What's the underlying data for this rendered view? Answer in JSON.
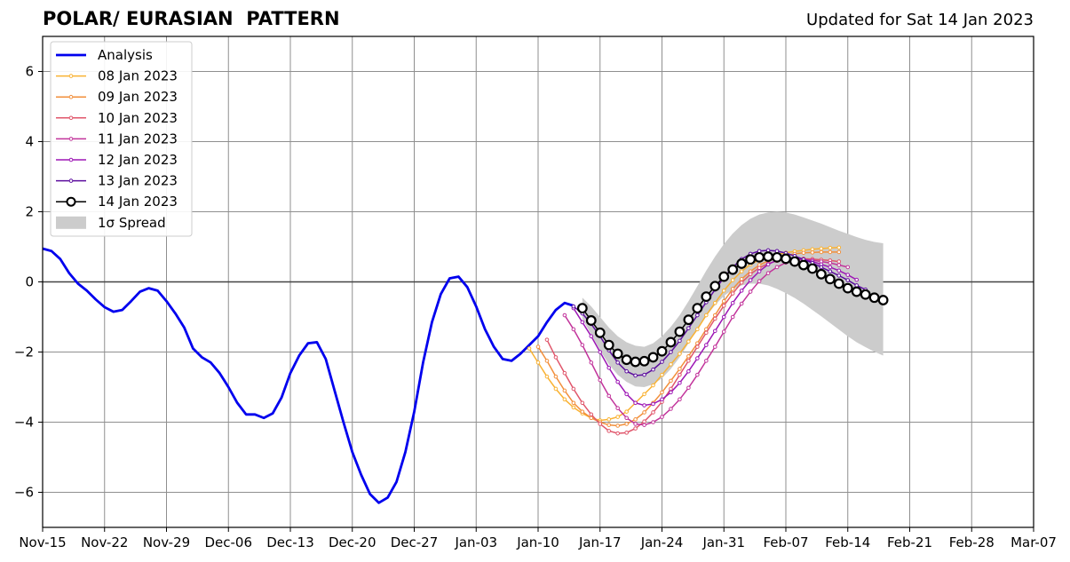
{
  "header": {
    "title": "POLAR/ EURASIAN  PATTERN",
    "updated": "Updated for Sat 14 Jan 2023"
  },
  "chart_data": {
    "type": "line",
    "title": "POLAR/ EURASIAN  PATTERN",
    "xlabel": "",
    "ylabel": "",
    "x_axis": {
      "start": "2022-11-15",
      "end": "2023-03-07",
      "ticks": [
        {
          "date": "2022-11-15",
          "label": "Nov-15"
        },
        {
          "date": "2022-11-22",
          "label": "Nov-22"
        },
        {
          "date": "2022-11-29",
          "label": "Nov-29"
        },
        {
          "date": "2022-12-06",
          "label": "Dec-06"
        },
        {
          "date": "2022-12-13",
          "label": "Dec-13"
        },
        {
          "date": "2022-12-20",
          "label": "Dec-20"
        },
        {
          "date": "2022-12-27",
          "label": "Dec-27"
        },
        {
          "date": "2023-01-03",
          "label": "Jan-03"
        },
        {
          "date": "2023-01-10",
          "label": "Jan-10"
        },
        {
          "date": "2023-01-17",
          "label": "Jan-17"
        },
        {
          "date": "2023-01-24",
          "label": "Jan-24"
        },
        {
          "date": "2023-01-31",
          "label": "Jan-31"
        },
        {
          "date": "2023-02-07",
          "label": "Feb-07"
        },
        {
          "date": "2023-02-14",
          "label": "Feb-14"
        },
        {
          "date": "2023-02-21",
          "label": "Feb-21"
        },
        {
          "date": "2023-02-28",
          "label": "Feb-28"
        },
        {
          "date": "2023-03-07",
          "label": "Mar-07"
        }
      ]
    },
    "y_axis": {
      "ylim": [
        -7,
        7
      ],
      "ticks": [
        {
          "value": 6,
          "label": "6"
        },
        {
          "value": 4,
          "label": "4"
        },
        {
          "value": 2,
          "label": "2"
        },
        {
          "value": 0,
          "label": "0"
        },
        {
          "value": -2,
          "label": "−2"
        },
        {
          "value": -4,
          "label": "−4"
        },
        {
          "value": -6,
          "label": "−6"
        }
      ]
    },
    "grid": true,
    "legend_position": "top-left",
    "series": [
      {
        "name": "Analysis",
        "color": "#0000ee",
        "style": "thick",
        "points": [
          [
            "2022-11-15",
            0.95
          ],
          [
            "2022-11-16",
            0.88
          ],
          [
            "2022-11-17",
            0.65
          ],
          [
            "2022-11-18",
            0.25
          ],
          [
            "2022-11-19",
            -0.05
          ],
          [
            "2022-11-20",
            -0.25
          ],
          [
            "2022-11-21",
            -0.5
          ],
          [
            "2022-11-22",
            -0.72
          ],
          [
            "2022-11-23",
            -0.85
          ],
          [
            "2022-11-24",
            -0.8
          ],
          [
            "2022-11-25",
            -0.55
          ],
          [
            "2022-11-26",
            -0.28
          ],
          [
            "2022-11-27",
            -0.18
          ],
          [
            "2022-11-28",
            -0.25
          ],
          [
            "2022-11-29",
            -0.55
          ],
          [
            "2022-11-30",
            -0.9
          ],
          [
            "2022-12-01",
            -1.3
          ],
          [
            "2022-12-02",
            -1.9
          ],
          [
            "2022-12-03",
            -2.15
          ],
          [
            "2022-12-04",
            -2.3
          ],
          [
            "2022-12-05",
            -2.6
          ],
          [
            "2022-12-06",
            -3.0
          ],
          [
            "2022-12-07",
            -3.45
          ],
          [
            "2022-12-08",
            -3.78
          ],
          [
            "2022-12-09",
            -3.78
          ],
          [
            "2022-12-10",
            -3.88
          ],
          [
            "2022-12-11",
            -3.75
          ],
          [
            "2022-12-12",
            -3.3
          ],
          [
            "2022-12-13",
            -2.6
          ],
          [
            "2022-12-14",
            -2.1
          ],
          [
            "2022-12-15",
            -1.75
          ],
          [
            "2022-12-16",
            -1.72
          ],
          [
            "2022-12-17",
            -2.2
          ],
          [
            "2022-12-18",
            -3.1
          ],
          [
            "2022-12-19",
            -4.0
          ],
          [
            "2022-12-20",
            -4.85
          ],
          [
            "2022-12-21",
            -5.5
          ],
          [
            "2022-12-22",
            -6.05
          ],
          [
            "2022-12-23",
            -6.3
          ],
          [
            "2022-12-24",
            -6.15
          ],
          [
            "2022-12-25",
            -5.7
          ],
          [
            "2022-12-26",
            -4.85
          ],
          [
            "2022-12-27",
            -3.7
          ],
          [
            "2022-12-28",
            -2.3
          ],
          [
            "2022-12-29",
            -1.15
          ],
          [
            "2022-12-30",
            -0.35
          ],
          [
            "2022-12-31",
            0.1
          ],
          [
            "2023-01-01",
            0.15
          ],
          [
            "2023-01-02",
            -0.15
          ],
          [
            "2023-01-03",
            -0.7
          ],
          [
            "2023-01-04",
            -1.35
          ],
          [
            "2023-01-05",
            -1.85
          ],
          [
            "2023-01-06",
            -2.2
          ],
          [
            "2023-01-07",
            -2.25
          ],
          [
            "2023-01-08",
            -2.05
          ],
          [
            "2023-01-09",
            -1.8
          ],
          [
            "2023-01-10",
            -1.55
          ],
          [
            "2023-01-11",
            -1.15
          ],
          [
            "2023-01-12",
            -0.8
          ],
          [
            "2023-01-13",
            -0.6
          ],
          [
            "2023-01-14",
            -0.68
          ]
        ]
      },
      {
        "name": "08 Jan 2023",
        "color": "#f9b233",
        "start": "2023-01-09",
        "values": [
          -1.9,
          -2.3,
          -2.7,
          -3.05,
          -3.35,
          -3.58,
          -3.75,
          -3.88,
          -3.95,
          -3.92,
          -3.85,
          -3.7,
          -3.45,
          -3.2,
          -2.95,
          -2.65,
          -2.35,
          -2.05,
          -1.7,
          -1.35,
          -0.95,
          -0.6,
          -0.25,
          0.05,
          0.3,
          0.5,
          0.62,
          0.72,
          0.78,
          0.83,
          0.87,
          0.9,
          0.93,
          0.95,
          0.97,
          0.98
        ]
      },
      {
        "name": "09 Jan 2023",
        "color": "#f28f3b",
        "start": "2023-01-10",
        "values": [
          -1.85,
          -2.25,
          -2.7,
          -3.1,
          -3.45,
          -3.7,
          -3.88,
          -4.0,
          -4.08,
          -4.1,
          -4.05,
          -3.92,
          -3.72,
          -3.45,
          -3.15,
          -2.82,
          -2.48,
          -2.12,
          -1.75,
          -1.35,
          -0.95,
          -0.55,
          -0.2,
          0.08,
          0.3,
          0.48,
          0.6,
          0.68,
          0.75,
          0.8,
          0.83,
          0.84,
          0.85,
          0.85,
          0.85
        ]
      },
      {
        "name": "10 Jan 2023",
        "color": "#e0566b",
        "start": "2023-01-11",
        "values": [
          -1.65,
          -2.15,
          -2.6,
          -3.05,
          -3.45,
          -3.78,
          -4.05,
          -4.25,
          -4.32,
          -4.3,
          -4.18,
          -3.98,
          -3.72,
          -3.42,
          -3.05,
          -2.65,
          -2.25,
          -1.85,
          -1.45,
          -1.05,
          -0.68,
          -0.33,
          -0.02,
          0.22,
          0.4,
          0.52,
          0.6,
          0.64,
          0.66,
          0.66,
          0.65,
          0.63,
          0.61,
          0.58
        ]
      },
      {
        "name": "11 Jan 2023",
        "color": "#c2349b",
        "start": "2023-01-13",
        "values": [
          -0.95,
          -1.35,
          -1.8,
          -2.3,
          -2.8,
          -3.25,
          -3.6,
          -3.88,
          -4.05,
          -4.08,
          -4.0,
          -3.85,
          -3.62,
          -3.35,
          -3.02,
          -2.65,
          -2.25,
          -1.85,
          -1.42,
          -1.0,
          -0.62,
          -0.28,
          0.02,
          0.25,
          0.42,
          0.55,
          0.62,
          0.64,
          0.62,
          0.58,
          0.54,
          0.48,
          0.42
        ]
      },
      {
        "name": "12 Jan 2023",
        "color": "#9d17b5",
        "start": "2023-01-14",
        "values": [
          -0.75,
          -1.15,
          -1.55,
          -2.0,
          -2.45,
          -2.85,
          -3.2,
          -3.45,
          -3.52,
          -3.48,
          -3.35,
          -3.15,
          -2.88,
          -2.55,
          -2.18,
          -1.8,
          -1.4,
          -1.0,
          -0.6,
          -0.25,
          0.05,
          0.3,
          0.5,
          0.62,
          0.68,
          0.68,
          0.64,
          0.58,
          0.5,
          0.42,
          0.32,
          0.2,
          0.06
        ]
      },
      {
        "name": "13 Jan 2023",
        "color": "#5c0d9e",
        "start": "2023-01-14",
        "values": [
          -0.7,
          -0.9,
          -1.2,
          -1.55,
          -1.95,
          -2.3,
          -2.55,
          -2.67,
          -2.65,
          -2.5,
          -2.28,
          -2.0,
          -1.68,
          -1.32,
          -0.95,
          -0.58,
          -0.22,
          0.12,
          0.42,
          0.65,
          0.8,
          0.88,
          0.9,
          0.88,
          0.82,
          0.74,
          0.64,
          0.54,
          0.42,
          0.3,
          0.18,
          0.05,
          -0.1,
          -0.22
        ]
      },
      {
        "name": "14 Jan 2023",
        "color": "#000000",
        "style": "circles",
        "start": "2023-01-15",
        "values": [
          -0.75,
          -1.1,
          -1.45,
          -1.8,
          -2.05,
          -2.22,
          -2.28,
          -2.26,
          -2.15,
          -1.98,
          -1.72,
          -1.42,
          -1.08,
          -0.75,
          -0.42,
          -0.12,
          0.15,
          0.35,
          0.52,
          0.64,
          0.7,
          0.72,
          0.7,
          0.66,
          0.58,
          0.48,
          0.38,
          0.22,
          0.08,
          -0.05,
          -0.18,
          -0.28,
          -0.36,
          -0.45,
          -0.52
        ]
      }
    ],
    "spread": {
      "name": "1σ Spread",
      "color": "#cccccc",
      "start": "2023-01-15",
      "upper": [
        -0.45,
        -0.7,
        -1.0,
        -1.3,
        -1.55,
        -1.72,
        -1.82,
        -1.85,
        -1.75,
        -1.55,
        -1.28,
        -0.95,
        -0.55,
        -0.12,
        0.32,
        0.72,
        1.08,
        1.38,
        1.62,
        1.8,
        1.92,
        1.98,
        2.0,
        1.98,
        1.92,
        1.84,
        1.75,
        1.66,
        1.56,
        1.46,
        1.37,
        1.28,
        1.2,
        1.14,
        1.1
      ],
      "lower": [
        -1.05,
        -1.5,
        -1.95,
        -2.35,
        -2.65,
        -2.85,
        -2.98,
        -3.0,
        -2.92,
        -2.75,
        -2.48,
        -2.15,
        -1.75,
        -1.35,
        -0.98,
        -0.66,
        -0.4,
        -0.22,
        -0.1,
        -0.05,
        -0.05,
        -0.1,
        -0.2,
        -0.32,
        -0.46,
        -0.62,
        -0.8,
        -0.98,
        -1.17,
        -1.36,
        -1.55,
        -1.72,
        -1.86,
        -1.99,
        -2.1
      ]
    }
  }
}
